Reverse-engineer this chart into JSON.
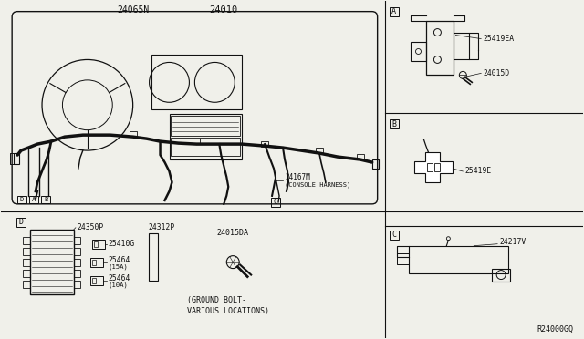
{
  "bg_color": "#f0f0ea",
  "line_color": "#111111",
  "fig_width": 6.4,
  "fig_height": 3.72,
  "dpi": 100,
  "labels": {
    "main_part": "24010",
    "harness_left": "24065N",
    "console_harness_num": "24167M",
    "console_harness_text": "(CONSOLE HARNESS)",
    "part_A1": "25419EA",
    "part_A2": "24015D",
    "part_B": "25419E",
    "part_C": "24217V",
    "part_D1": "24350P",
    "part_D2": "24312P",
    "part_D3": "25410G",
    "part_D4": "25464",
    "part_D4a": "(15A)",
    "part_D5": "25464",
    "part_D5a": "(10A)",
    "part_bolt": "24015DA",
    "ground_text1": "(GROUND BOLT-",
    "ground_text2": "VARIOUS LOCATIONS)",
    "ref_code": "R24000GQ"
  }
}
